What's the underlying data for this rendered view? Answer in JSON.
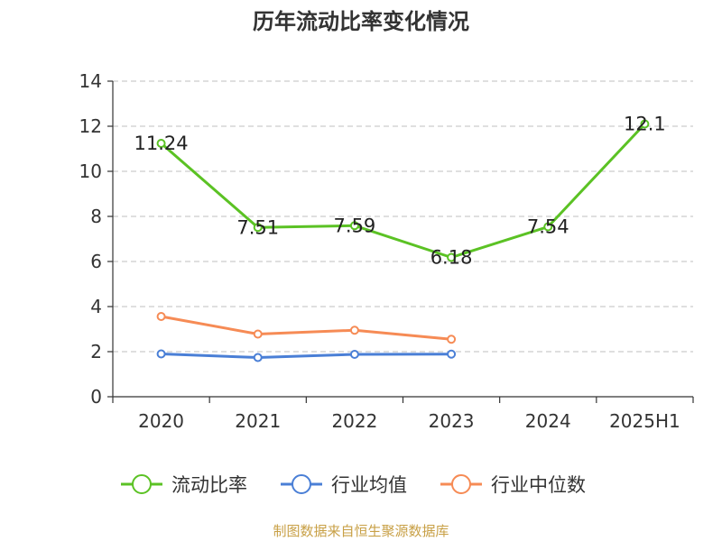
{
  "chart_data": {
    "type": "line",
    "title": "历年流动比率变化情况",
    "categories": [
      "2020",
      "2021",
      "2022",
      "2023",
      "2024",
      "2025H1"
    ],
    "ylim": [
      0,
      14
    ],
    "yticks": [
      0,
      2,
      4,
      6,
      8,
      10,
      12,
      14
    ],
    "grid": true,
    "legend_position": "bottom",
    "series": [
      {
        "name": "流动比率",
        "color": "#5bc224",
        "values": [
          11.24,
          7.51,
          7.59,
          6.18,
          7.54,
          12.1
        ],
        "labels": [
          "11.24",
          "7.51",
          "7.59",
          "6.18",
          "7.54",
          "12.1"
        ],
        "show_labels": true
      },
      {
        "name": "行业均值",
        "color": "#4a7fd6",
        "values": [
          1.9,
          1.74,
          1.88,
          1.89,
          null,
          null
        ],
        "show_labels": false
      },
      {
        "name": "行业中位数",
        "color": "#f68b55",
        "values": [
          3.56,
          2.78,
          2.95,
          2.55,
          null,
          null
        ],
        "show_labels": false
      }
    ]
  },
  "source": "制图数据来自恒生聚源数据库",
  "colors": {
    "axis": "#333333",
    "grid": "#cccccc",
    "source_text": "#c8a046"
  }
}
